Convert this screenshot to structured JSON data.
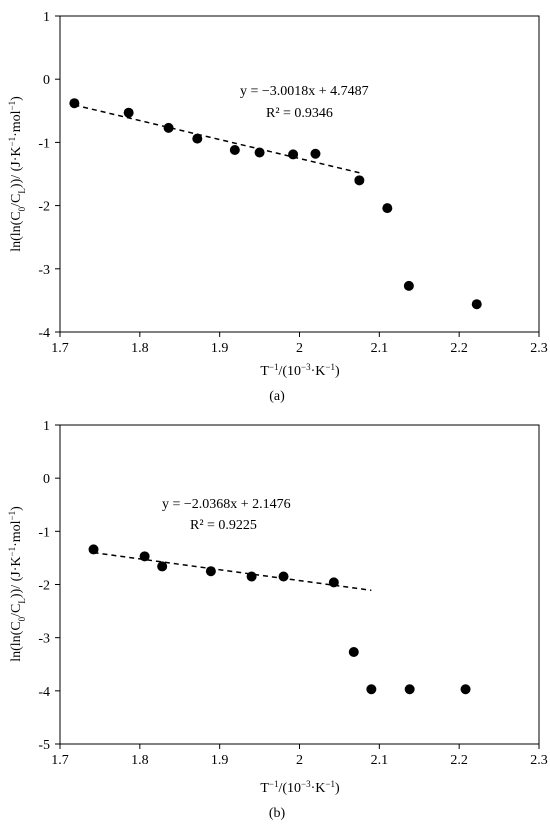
{
  "chart_data": [
    {
      "type": "scatter",
      "panel_label": "(a)",
      "xlabel": "T⁻¹/(10⁻³·K⁻¹)",
      "ylabel": "ln(ln(C0/CL))/ (J·K⁻¹·mol⁻¹)",
      "xlim": [
        1.7,
        2.3
      ],
      "ylim": [
        -4,
        1
      ],
      "xticks": [
        "1.7",
        "1.8",
        "1.9",
        "2",
        "2.1",
        "2.2",
        "2.3"
      ],
      "yticks": [
        "1",
        "0",
        "-1",
        "-2",
        "-3",
        "-4"
      ],
      "grid": false,
      "series": [
        {
          "x": [
            1.718,
            1.786,
            1.836,
            1.872,
            1.919,
            1.95,
            1.992,
            2.02,
            2.075,
            2.11,
            2.137,
            2.222
          ],
          "y": [
            -0.38,
            -0.53,
            -0.77,
            -0.94,
            -1.12,
            -1.16,
            -1.19,
            -1.18,
            -1.6,
            -2.04,
            -3.27,
            -3.56
          ]
        }
      ],
      "trendline": {
        "slope": -3.0018,
        "intercept": 4.7487,
        "x_range": [
          1.718,
          2.075
        ],
        "equation": "y = −3.0018x + 4.7487",
        "r2": "R² = 0.9346"
      }
    },
    {
      "type": "scatter",
      "panel_label": "(b)",
      "xlabel": "T⁻¹/(10⁻³·K⁻¹)",
      "ylabel": "ln(ln(C0/CL))/ (J·K⁻¹·mol⁻¹)",
      "xlim": [
        1.7,
        2.3
      ],
      "ylim": [
        -5,
        1
      ],
      "xticks": [
        "1.7",
        "1.8",
        "1.9",
        "2",
        "2.1",
        "2.2",
        "2.3"
      ],
      "yticks": [
        "1",
        "0",
        "-1",
        "-2",
        "-3",
        "-4",
        "-5"
      ],
      "grid": false,
      "series": [
        {
          "x": [
            1.742,
            1.806,
            1.828,
            1.889,
            1.94,
            1.98,
            2.043,
            2.068,
            2.09,
            2.138,
            2.208
          ],
          "y": [
            -1.34,
            -1.47,
            -1.66,
            -1.75,
            -1.85,
            -1.85,
            -1.96,
            -3.27,
            -3.97,
            -3.97,
            -3.97
          ]
        }
      ],
      "trendline": {
        "slope": -2.0368,
        "intercept": 2.1476,
        "x_range": [
          1.742,
          2.09
        ],
        "equation": "y = −2.0368x + 2.1476",
        "r2": "R² = 0.9225"
      }
    }
  ]
}
